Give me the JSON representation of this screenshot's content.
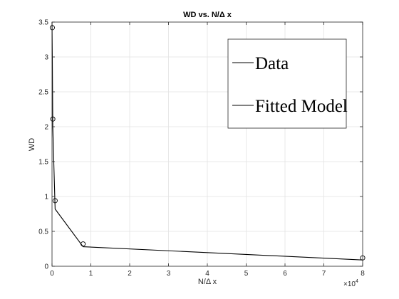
{
  "chart_data": {
    "type": "line",
    "title": "WD vs. N/Δ x",
    "xlabel": "N/Δ x",
    "ylabel": "WD",
    "x_multiplier_label": "×10",
    "x_multiplier_exponent": "4",
    "xlim": [
      0,
      80000
    ],
    "ylim": [
      0,
      3.5
    ],
    "x_tick_values": [
      0,
      10000,
      20000,
      30000,
      40000,
      50000,
      60000,
      70000,
      80000
    ],
    "x_tick_labels": [
      "0",
      "1",
      "2",
      "3",
      "4",
      "5",
      "6",
      "7",
      "8"
    ],
    "y_tick_values": [
      0,
      0.5,
      1,
      1.5,
      2,
      2.5,
      3,
      3.5
    ],
    "y_tick_labels": [
      "0",
      "0.5",
      "1",
      "1.5",
      "2",
      "2.5",
      "3",
      "3.5"
    ],
    "grid": true,
    "legend_position": "top-right",
    "series": [
      {
        "name": "Data",
        "style": "markers",
        "marker": "circle",
        "color": "#000000",
        "x": [
          80,
          200,
          800,
          8000,
          80000
        ],
        "y": [
          3.42,
          2.11,
          0.94,
          0.32,
          0.12
        ]
      },
      {
        "name": "Fitted Model",
        "style": "line",
        "color": "#000000",
        "x": [
          0,
          80,
          200,
          800,
          8000,
          80000
        ],
        "y": [
          3.5,
          3.0,
          2.0,
          0.82,
          0.28,
          0.09
        ]
      }
    ]
  }
}
